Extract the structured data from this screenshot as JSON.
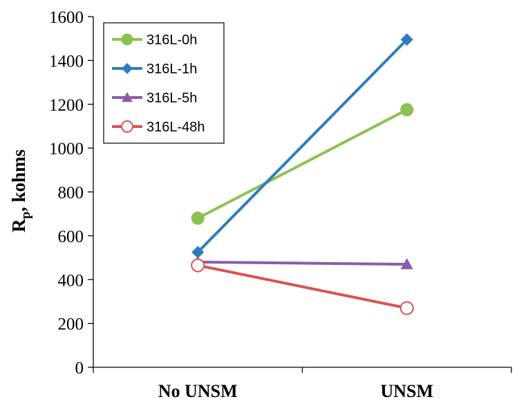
{
  "chart_data": {
    "type": "line",
    "categories": [
      "No UNSM",
      "UNSM"
    ],
    "ylabel_main": "R",
    "ylabel_sub": "p",
    "ylabel_rest": ", kohms",
    "ylim": [
      0,
      1600
    ],
    "yticks": [
      0,
      200,
      400,
      600,
      800,
      1000,
      1200,
      1400,
      1600
    ],
    "grid": false,
    "legend_position": "top-left",
    "series": [
      {
        "name": "316L-0h",
        "values": [
          680,
          1175
        ],
        "color": "#8cc152",
        "marker": "circle"
      },
      {
        "name": "316L-1h",
        "values": [
          525,
          1495
        ],
        "color": "#2e7bbf",
        "marker": "diamond"
      },
      {
        "name": "316L-5h",
        "values": [
          480,
          470
        ],
        "color": "#8b5ca8",
        "marker": "triangle"
      },
      {
        "name": "316L-48h",
        "values": [
          465,
          270
        ],
        "color": "#d9534f",
        "marker": "open-circle"
      }
    ]
  }
}
